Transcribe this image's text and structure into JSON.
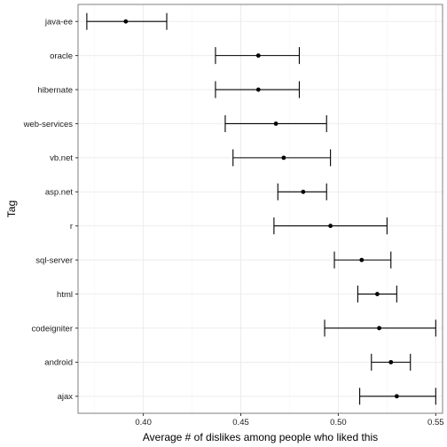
{
  "chart_data": {
    "type": "errorbar",
    "orientation": "horizontal",
    "xlabel": "Average # of dislikes among people who liked this",
    "ylabel": "Tag",
    "xlim": [
      0.3665,
      0.5535
    ],
    "xticks": [
      0.4,
      0.45,
      0.5,
      0.55
    ],
    "xtick_labels": [
      "0.40",
      "0.45",
      "0.50",
      "0.55"
    ],
    "grid": true,
    "categories": [
      "java-ee",
      "oracle",
      "hibernate",
      "web-services",
      "vb.net",
      "asp.net",
      "r",
      "sql-server",
      "html",
      "codeigniter",
      "android",
      "ajax"
    ],
    "mean": [
      0.391,
      0.459,
      0.459,
      0.468,
      0.472,
      0.482,
      0.496,
      0.512,
      0.52,
      0.521,
      0.527,
      0.53
    ],
    "lower": [
      0.371,
      0.437,
      0.437,
      0.442,
      0.446,
      0.469,
      0.467,
      0.498,
      0.51,
      0.493,
      0.517,
      0.511
    ],
    "upper": [
      0.412,
      0.48,
      0.48,
      0.494,
      0.496,
      0.494,
      0.525,
      0.527,
      0.53,
      0.55,
      0.537,
      0.55
    ]
  }
}
